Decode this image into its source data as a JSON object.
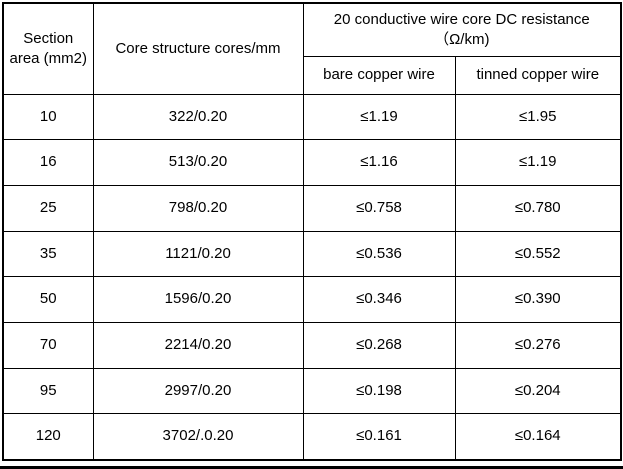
{
  "chart_data": {
    "type": "table",
    "title": "",
    "header": {
      "section_area": "Section area (mm2)",
      "core_structure": "Core structure cores/mm",
      "resistance_group": "20 conductive wire core DC resistance （Ω/km)",
      "bare": "bare copper wire",
      "tinned": "tinned copper wire"
    },
    "rows": [
      {
        "section_area": "10",
        "core_structure": "322/0.20",
        "bare": "≤1.19",
        "tinned": "≤1.95"
      },
      {
        "section_area": "16",
        "core_structure": "513/0.20",
        "bare": "≤1.16",
        "tinned": "≤1.19"
      },
      {
        "section_area": "25",
        "core_structure": "798/0.20",
        "bare": "≤0.758",
        "tinned": "≤0.780"
      },
      {
        "section_area": "35",
        "core_structure": "1121/0.20",
        "bare": "≤0.536",
        "tinned": "≤0.552"
      },
      {
        "section_area": "50",
        "core_structure": "1596/0.20",
        "bare": "≤0.346",
        "tinned": "≤0.390"
      },
      {
        "section_area": "70",
        "core_structure": "2214/0.20",
        "bare": "≤0.268",
        "tinned": "≤0.276"
      },
      {
        "section_area": "95",
        "core_structure": "2997/0.20",
        "bare": "≤0.198",
        "tinned": "≤0.204"
      },
      {
        "section_area": "120",
        "core_structure": "3702/.0.20",
        "bare": "≤0.161",
        "tinned": "≤0.164"
      }
    ],
    "layout": {
      "grid": "on",
      "border_color": "#000000",
      "background_color": "#ffffff",
      "text_color": "#000000"
    }
  }
}
